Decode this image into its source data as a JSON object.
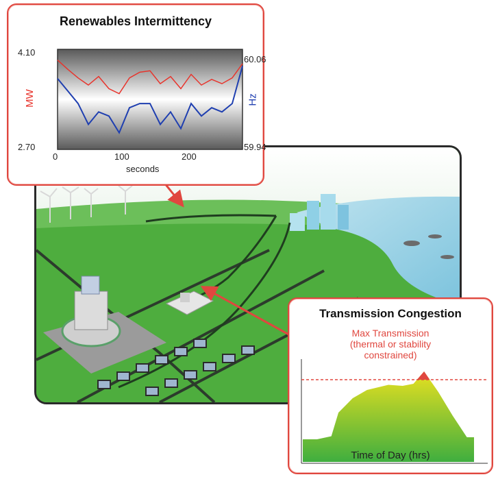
{
  "renewables": {
    "title": "Renewables Intermittency",
    "left_axis_label": "MW",
    "right_axis_label": "Hz",
    "x_axis_label": "seconds",
    "y_left_top": "4.10",
    "y_left_bottom": "2.70",
    "y_right_top": "60.06",
    "y_right_bottom": "59.94",
    "x_ticks": [
      "0",
      "100",
      "200"
    ],
    "colors": {
      "mw_line": "#e8342c",
      "hz_line": "#1f3fb0",
      "frame": "#e0473f"
    }
  },
  "congestion": {
    "title": "Transmission Congestion",
    "limit_label_line1": "Max Transmission",
    "limit_label_line2": "(thermal or stability",
    "limit_label_line3": "constrained)",
    "x_axis_label": "Time of Day (hrs)",
    "colors": {
      "limit_line": "#e0473f",
      "curve_top": "#e8e020",
      "curve_bottom": "#3fae3f"
    }
  },
  "chart_data": [
    {
      "type": "line",
      "title": "Renewables Intermittency",
      "xlabel": "seconds",
      "ylabel": "MW",
      "y2label": "Hz",
      "xlim": [
        0,
        270
      ],
      "ylim": [
        2.7,
        4.1
      ],
      "y2lim": [
        59.94,
        60.06
      ],
      "series": [
        {
          "name": "MW",
          "axis": "left",
          "x": [
            0,
            15,
            30,
            45,
            60,
            75,
            90,
            105,
            120,
            135,
            150,
            165,
            180,
            195,
            210,
            225,
            240,
            255,
            270
          ],
          "values": [
            3.95,
            3.82,
            3.7,
            3.6,
            3.72,
            3.55,
            3.48,
            3.7,
            3.78,
            3.8,
            3.62,
            3.72,
            3.55,
            3.75,
            3.6,
            3.68,
            3.62,
            3.7,
            3.9
          ]
        },
        {
          "name": "Hz",
          "axis": "right",
          "x": [
            0,
            15,
            30,
            45,
            60,
            75,
            90,
            105,
            120,
            135,
            150,
            165,
            180,
            195,
            210,
            225,
            240,
            255,
            270
          ],
          "values": [
            60.025,
            60.01,
            59.995,
            59.97,
            59.985,
            59.98,
            59.96,
            59.99,
            59.995,
            59.995,
            59.97,
            59.985,
            59.965,
            59.995,
            59.98,
            59.99,
            59.985,
            59.995,
            60.04
          ]
        }
      ]
    },
    {
      "type": "area",
      "title": "Transmission Congestion",
      "xlabel": "Time of Day (hrs)",
      "ylabel": "",
      "xlim": [
        0,
        24
      ],
      "ylim": [
        0,
        100
      ],
      "limit": 80,
      "series": [
        {
          "name": "",
          "x": [
            0,
            2,
            4,
            5,
            7,
            9,
            12,
            14,
            15.5,
            17,
            19,
            21,
            23,
            24
          ],
          "values": [
            22,
            22,
            25,
            48,
            62,
            70,
            75,
            74,
            76,
            88,
            68,
            45,
            24,
            24
          ]
        }
      ]
    }
  ]
}
